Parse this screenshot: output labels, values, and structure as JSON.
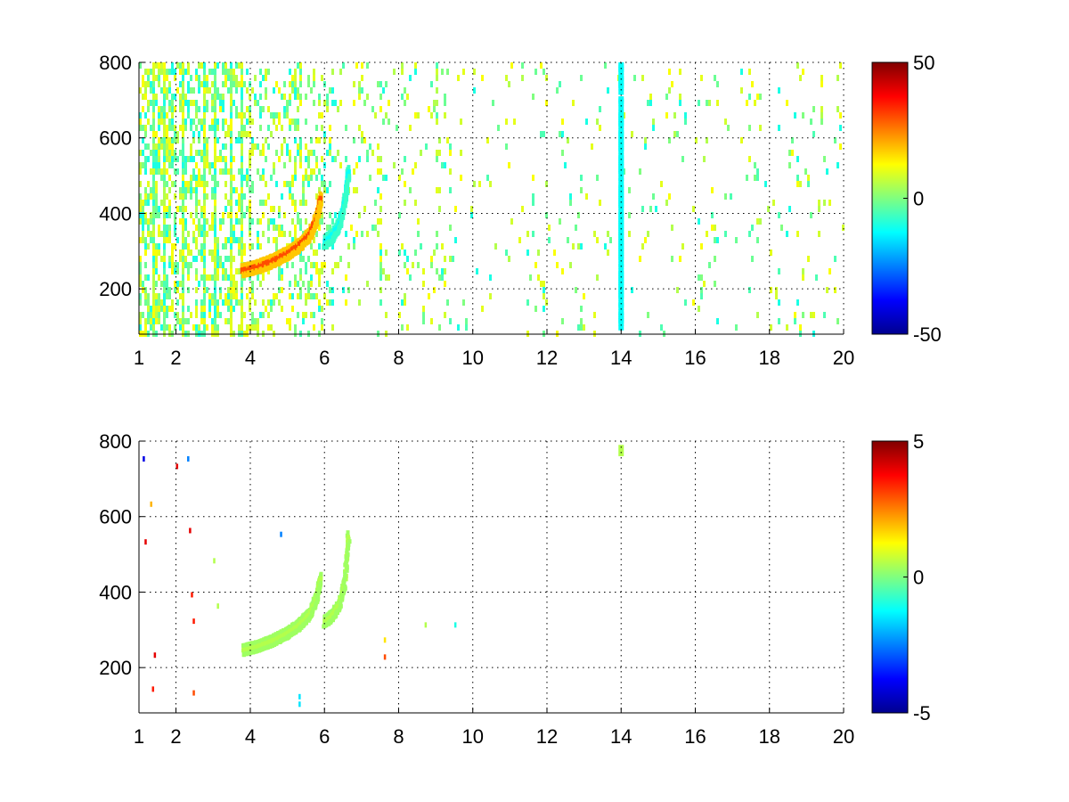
{
  "figure": {
    "panels": [
      {
        "id": "top",
        "x_ticks": [
          1,
          2,
          4,
          6,
          8,
          10,
          12,
          14,
          16,
          18,
          20
        ],
        "y_ticks": [
          200,
          400,
          600,
          800
        ],
        "xlim": [
          1,
          20
        ],
        "ylim": [
          80,
          800
        ],
        "colorbar": {
          "ticks": [
            50,
            0,
            -50
          ],
          "clim": [
            -50,
            50
          ]
        }
      },
      {
        "id": "bottom",
        "x_ticks": [
          1,
          2,
          4,
          6,
          8,
          10,
          12,
          14,
          16,
          18,
          20
        ],
        "y_ticks": [
          200,
          400,
          600,
          800
        ],
        "xlim": [
          1,
          20
        ],
        "ylim": [
          80,
          800
        ],
        "colorbar": {
          "ticks": [
            5,
            0,
            -5
          ],
          "clim": [
            -5,
            5
          ]
        }
      }
    ]
  },
  "chart_data": [
    {
      "type": "heatmap",
      "title": "",
      "xlabel": "",
      "ylabel": "",
      "xlim": [
        1,
        20
      ],
      "ylim": [
        80,
        800
      ],
      "x_scale": "piecewise-linear",
      "grid": true,
      "colormap": "jet",
      "clim": [
        -50,
        50
      ],
      "colorbar_position": "right",
      "features": [
        {
          "name": "",
          "kind": "curve",
          "value": 30,
          "points": [
            [
              3.8,
              240
            ],
            [
              4.2,
              250
            ],
            [
              4.6,
              265
            ],
            [
              5.0,
              285
            ],
            [
              5.3,
              305
            ],
            [
              5.6,
              335
            ],
            [
              5.8,
              380
            ],
            [
              5.9,
              430
            ]
          ]
        },
        {
          "name": "",
          "kind": "curve",
          "value": -12,
          "points": [
            [
              6.0,
              315
            ],
            [
              6.2,
              330
            ],
            [
              6.4,
              360
            ],
            [
              6.55,
              420
            ],
            [
              6.65,
              500
            ]
          ]
        },
        {
          "name": "",
          "kind": "vertical_stripe",
          "value": -12,
          "x": 14,
          "y_range": [
            90,
            790
          ]
        }
      ],
      "background": "sparse noise, values mostly between -10 and 10, dense for x < 6, sparse for x > 6"
    },
    {
      "type": "heatmap",
      "title": "",
      "xlabel": "",
      "ylabel": "",
      "xlim": [
        1,
        20
      ],
      "ylim": [
        80,
        800
      ],
      "x_scale": "piecewise-linear",
      "grid": true,
      "colormap": "jet",
      "clim": [
        -5,
        5
      ],
      "colorbar_position": "right",
      "features": [
        {
          "name": "",
          "kind": "curve",
          "value": 0.5,
          "points": [
            [
              3.8,
              240
            ],
            [
              4.2,
              250
            ],
            [
              4.6,
              265
            ],
            [
              5.0,
              285
            ],
            [
              5.3,
              305
            ],
            [
              5.6,
              335
            ],
            [
              5.8,
              380
            ],
            [
              5.9,
              430
            ]
          ]
        },
        {
          "name": "",
          "kind": "curve",
          "value": 0.5,
          "points": [
            [
              6.0,
              315
            ],
            [
              6.2,
              330
            ],
            [
              6.4,
              360
            ],
            [
              6.55,
              420
            ],
            [
              6.65,
              540
            ]
          ]
        },
        {
          "name": "",
          "kind": "point",
          "value": 0.5,
          "x": 14,
          "y_range": [
            760,
            790
          ]
        }
      ],
      "background": "nearly empty; a few isolated pixels near x = 1 to 2.5 and x = 7.6, 8.7"
    }
  ]
}
